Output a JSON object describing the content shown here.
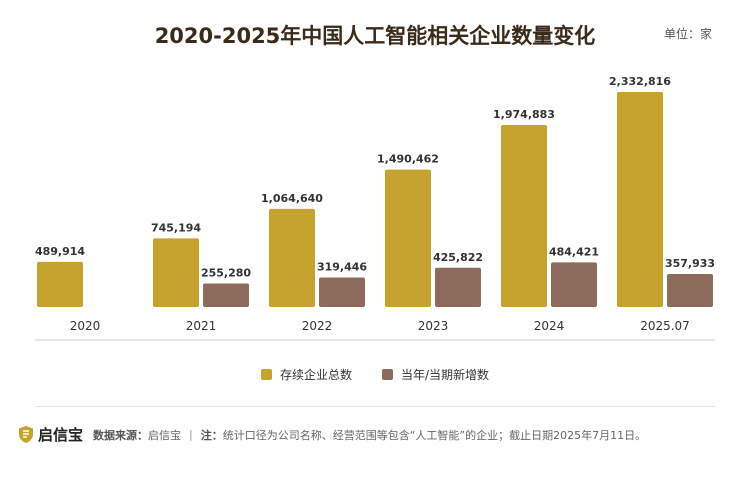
{
  "header": {
    "title": "2020-2025年中国人工智能相关企业数量变化",
    "unit": "单位：家"
  },
  "legend": {
    "items": [
      {
        "label": "存续企业总数",
        "color": "#c6a22f"
      },
      {
        "label": "当年/当期新增数",
        "color": "#8c6a5c"
      }
    ]
  },
  "footer": {
    "logo_text": "启信宝",
    "source_label": "数据来源：",
    "source_value": "启信宝",
    "separator": "|",
    "note_label": "注：",
    "note_value": "统计口径为公司名称、经营范围等包含“人工智能”的企业；截止日期2025年7月11日。"
  },
  "chart_data": {
    "type": "bar",
    "categories": [
      "2020",
      "2021",
      "2022",
      "2023",
      "2024",
      "2025.07"
    ],
    "series": [
      {
        "name": "存续企业总数",
        "color": "#c6a22f",
        "values": [
          489914,
          745194,
          1064640,
          1490462,
          1974883,
          2332816
        ],
        "labels": [
          "489,914",
          "745,194",
          "1,064,640",
          "1,490,462",
          "1,974,883",
          "2,332,816"
        ]
      },
      {
        "name": "当年/当期新增数",
        "color": "#8c6a5c",
        "values": [
          null,
          255280,
          319446,
          425822,
          484421,
          357933
        ],
        "labels": [
          "",
          "255,280",
          "319,446",
          "425,822",
          "484,421",
          "357,933"
        ]
      }
    ],
    "title": "2020-2025年中国人工智能相关企业数量变化",
    "ylim": [
      0,
      2332816
    ],
    "grid": false,
    "legend_position": "bottom-center"
  }
}
